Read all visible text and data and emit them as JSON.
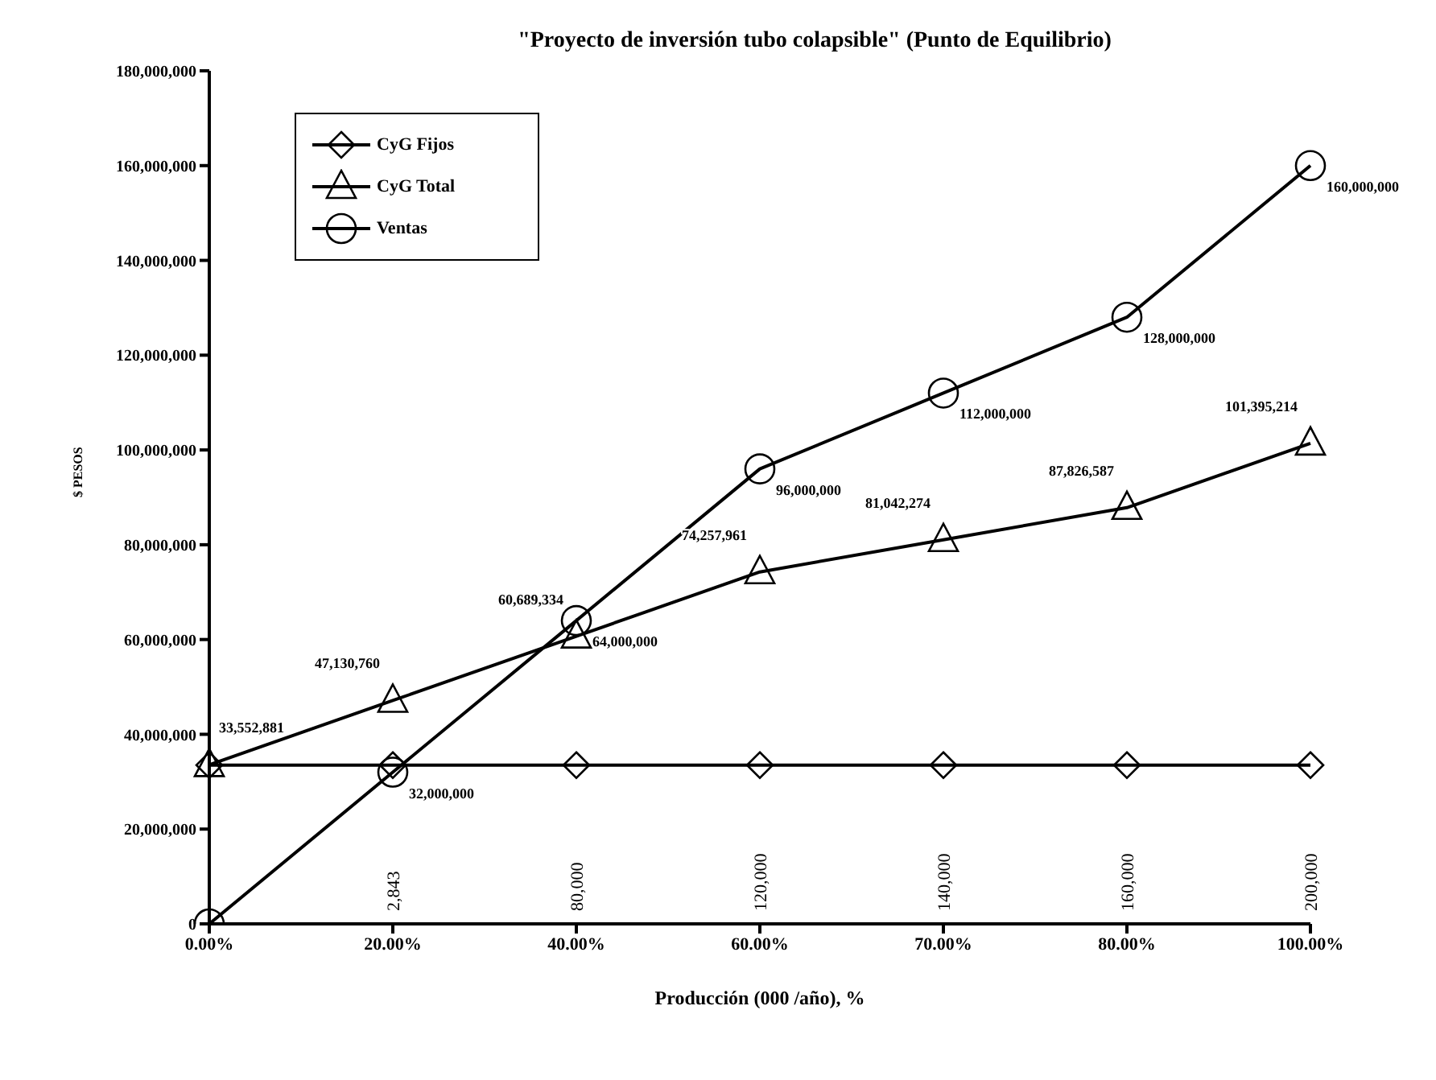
{
  "chart_data": {
    "type": "line",
    "title": "\"Proyecto de inversión tubo colapsible\"  (Punto de Equilibrio)",
    "xlabel": "Producción (000 /año), %",
    "ylabel": "$ PESOS",
    "categories": [
      "0.00%",
      "20.00%",
      "40.00%",
      "60.00%",
      "70.00%",
      "80.00%",
      "100.00%"
    ],
    "series": [
      {
        "name": "CyG Fijos",
        "color": "#000000",
        "marker": "diamond",
        "values": [
          33500000,
          33500000,
          33500000,
          33500000,
          33500000,
          33500000,
          33500000
        ]
      },
      {
        "name": "CyG Total",
        "color": "#000000",
        "marker": "triangle",
        "values": [
          33552881,
          47130760,
          60689334,
          74257961,
          81042274,
          87826587,
          101395214
        ],
        "value_labels": [
          "33,552,881",
          "47,130,760",
          "60,689,334",
          "74,257,961",
          "81,042,274",
          "87,826,587",
          "101,395,214"
        ]
      },
      {
        "name": "Ventas",
        "color": "#000000",
        "marker": "circle",
        "values": [
          0,
          32000000,
          64000000,
          96000000,
          112000000,
          128000000,
          160000000
        ],
        "value_labels": [
          null,
          "32,000,000",
          "64,000,000",
          "96,000,000",
          "112,000,000",
          "128,000,000",
          "160,000,000"
        ]
      }
    ],
    "ylim": [
      0,
      180000000
    ],
    "yticks": [
      0,
      {
        "value": 20000000,
        "label": "20,000,000"
      },
      {
        "value": 40000000,
        "label": "40,000,000"
      },
      {
        "value": 60000000,
        "label": "60,000,000"
      },
      {
        "value": 80000000,
        "label": "80,000,000"
      },
      {
        "value": 100000000,
        "label": "100,000,000"
      },
      {
        "value": 120000000,
        "label": "120,000,000"
      },
      {
        "value": 140000000,
        "label": "140,000,000"
      },
      {
        "value": 160000000,
        "label": "160,000,000"
      },
      {
        "value": 180000000,
        "label": "180,000,000"
      }
    ],
    "annotations": [
      {
        "text": "2,843",
        "x": "20.00%"
      },
      {
        "text": "80,000",
        "x": "40.00%"
      },
      {
        "text": "120,000",
        "x": "60.00%"
      },
      {
        "text": "140,000",
        "x": "70.00%"
      },
      {
        "text": "160,000",
        "x": "80.00%"
      },
      {
        "text": "200,000",
        "x": "100.00%"
      }
    ],
    "grid": false,
    "legend": "top left",
    "line_style": "solid"
  }
}
